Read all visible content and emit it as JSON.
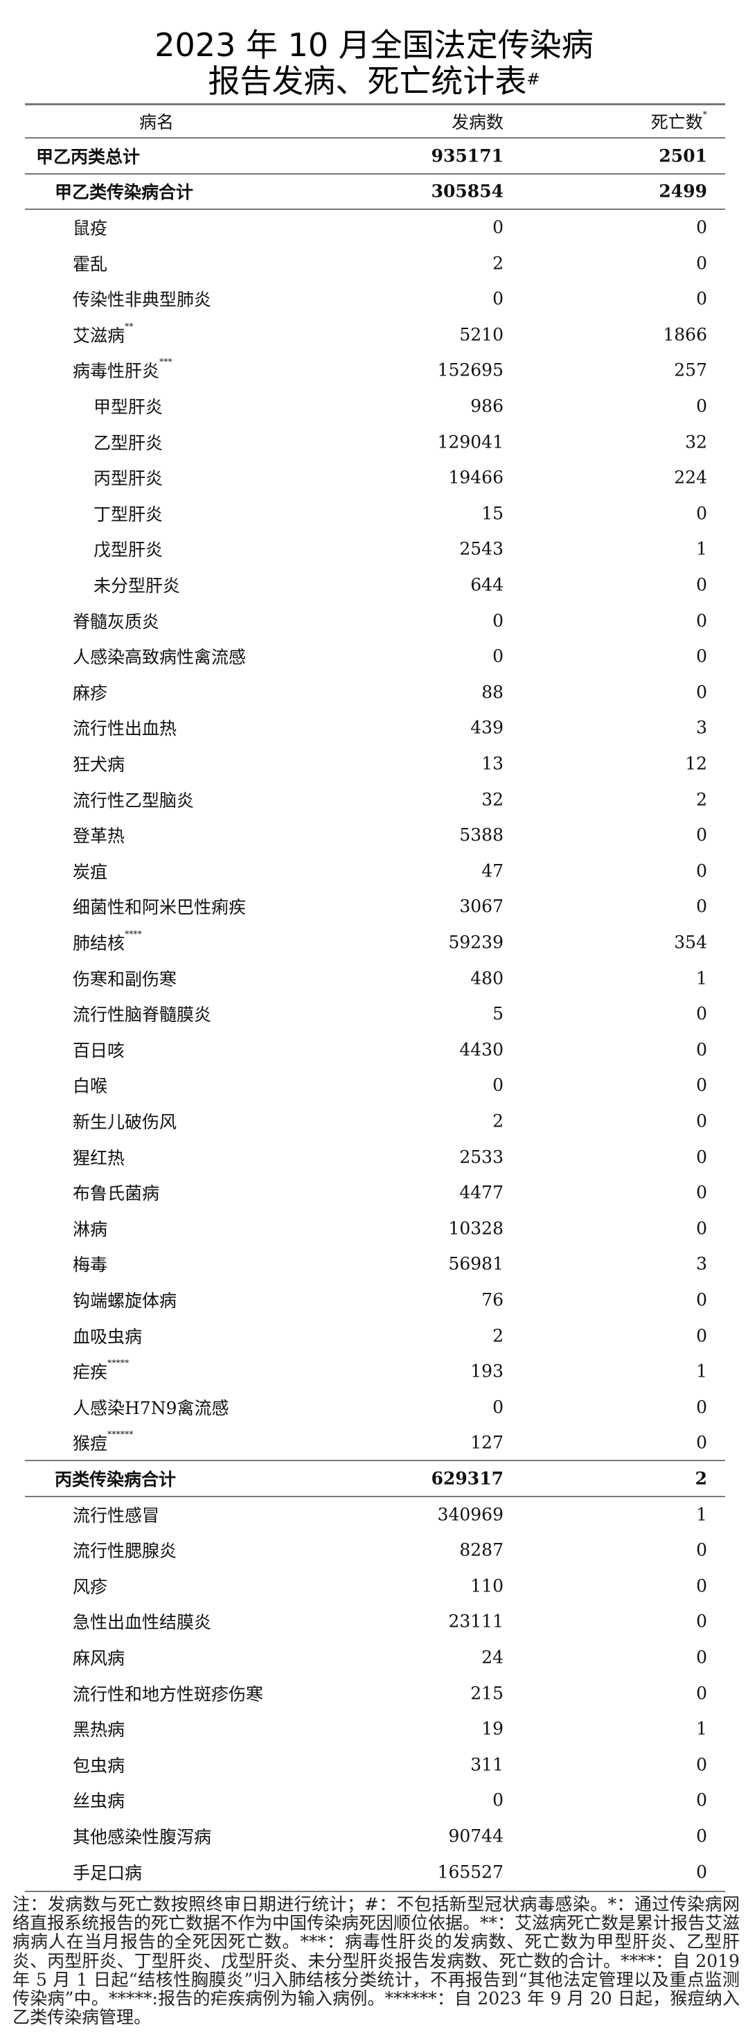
{
  "title": {
    "line1": "2023 年 10 月全国法定传染病",
    "line2": "报告发病、死亡统计表",
    "line2_mark": "#"
  },
  "header": {
    "name": "病名",
    "incidence": "发病数",
    "deaths": "死亡数",
    "deaths_mark": "*"
  },
  "rows": [
    {
      "name": "甲乙丙类总计",
      "incidence": "935171",
      "deaths": "2501",
      "level": 0,
      "bold": true
    },
    {
      "name": "甲乙类传染病合计",
      "incidence": "305854",
      "deaths": "2499",
      "level": 1,
      "bold": true
    },
    {
      "name": "鼠疫",
      "incidence": "0",
      "deaths": "0",
      "level": 2
    },
    {
      "name": "霍乱",
      "incidence": "2",
      "deaths": "0",
      "level": 2
    },
    {
      "name": "传染性非典型肺炎",
      "incidence": "0",
      "deaths": "0",
      "level": 2
    },
    {
      "name": "艾滋病",
      "mark": "**",
      "incidence": "5210",
      "deaths": "1866",
      "level": 2
    },
    {
      "name": "病毒性肝炎",
      "mark": "***",
      "incidence": "152695",
      "deaths": "257",
      "level": 2
    },
    {
      "name": "甲型肝炎",
      "incidence": "986",
      "deaths": "0",
      "level": 3
    },
    {
      "name": "乙型肝炎",
      "incidence": "129041",
      "deaths": "32",
      "level": 3
    },
    {
      "name": "丙型肝炎",
      "incidence": "19466",
      "deaths": "224",
      "level": 3
    },
    {
      "name": "丁型肝炎",
      "incidence": "15",
      "deaths": "0",
      "level": 3
    },
    {
      "name": "戊型肝炎",
      "incidence": "2543",
      "deaths": "1",
      "level": 3
    },
    {
      "name": "未分型肝炎",
      "incidence": "644",
      "deaths": "0",
      "level": 3
    },
    {
      "name": "脊髓灰质炎",
      "incidence": "0",
      "deaths": "0",
      "level": 2
    },
    {
      "name": "人感染高致病性禽流感",
      "incidence": "0",
      "deaths": "0",
      "level": 2
    },
    {
      "name": "麻疹",
      "incidence": "88",
      "deaths": "0",
      "level": 2
    },
    {
      "name": "流行性出血热",
      "incidence": "439",
      "deaths": "3",
      "level": 2
    },
    {
      "name": "狂犬病",
      "incidence": "13",
      "deaths": "12",
      "level": 2
    },
    {
      "name": "流行性乙型脑炎",
      "incidence": "32",
      "deaths": "2",
      "level": 2
    },
    {
      "name": "登革热",
      "incidence": "5388",
      "deaths": "0",
      "level": 2
    },
    {
      "name": "炭疽",
      "incidence": "47",
      "deaths": "0",
      "level": 2
    },
    {
      "name": "细菌性和阿米巴性痢疾",
      "incidence": "3067",
      "deaths": "0",
      "level": 2
    },
    {
      "name": "肺结核",
      "mark": "****",
      "incidence": "59239",
      "deaths": "354",
      "level": 2
    },
    {
      "name": "伤寒和副伤寒",
      "incidence": "480",
      "deaths": "1",
      "level": 2
    },
    {
      "name": "流行性脑脊髓膜炎",
      "incidence": "5",
      "deaths": "0",
      "level": 2
    },
    {
      "name": "百日咳",
      "incidence": "4430",
      "deaths": "0",
      "level": 2
    },
    {
      "name": "白喉",
      "incidence": "0",
      "deaths": "0",
      "level": 2
    },
    {
      "name": "新生儿破伤风",
      "incidence": "2",
      "deaths": "0",
      "level": 2
    },
    {
      "name": "猩红热",
      "incidence": "2533",
      "deaths": "0",
      "level": 2
    },
    {
      "name": "布鲁氏菌病",
      "incidence": "4477",
      "deaths": "0",
      "level": 2
    },
    {
      "name": "淋病",
      "incidence": "10328",
      "deaths": "0",
      "level": 2
    },
    {
      "name": "梅毒",
      "incidence": "56981",
      "deaths": "3",
      "level": 2
    },
    {
      "name": "钩端螺旋体病",
      "incidence": "76",
      "deaths": "0",
      "level": 2
    },
    {
      "name": "血吸虫病",
      "incidence": "2",
      "deaths": "0",
      "level": 2
    },
    {
      "name": "疟疾",
      "mark": "*****",
      "incidence": "193",
      "deaths": "1",
      "level": 2
    },
    {
      "name": "人感染H7N9禽流感",
      "incidence": "0",
      "deaths": "0",
      "level": 2
    },
    {
      "name": "猴痘",
      "mark": "******",
      "incidence": "127",
      "deaths": "0",
      "level": 2
    },
    {
      "name": "丙类传染病合计",
      "incidence": "629317",
      "deaths": "2",
      "level": 1,
      "bold": true
    },
    {
      "name": "流行性感冒",
      "incidence": "340969",
      "deaths": "1",
      "level": 2
    },
    {
      "name": "流行性腮腺炎",
      "incidence": "8287",
      "deaths": "0",
      "level": 2
    },
    {
      "name": "风疹",
      "incidence": "110",
      "deaths": "0",
      "level": 2
    },
    {
      "name": "急性出血性结膜炎",
      "incidence": "23111",
      "deaths": "0",
      "level": 2
    },
    {
      "name": "麻风病",
      "incidence": "24",
      "deaths": "0",
      "level": 2
    },
    {
      "name": "流行性和地方性斑疹伤寒",
      "incidence": "215",
      "deaths": "0",
      "level": 2
    },
    {
      "name": "黑热病",
      "incidence": "19",
      "deaths": "1",
      "level": 2
    },
    {
      "name": "包虫病",
      "incidence": "311",
      "deaths": "0",
      "level": 2
    },
    {
      "name": "丝虫病",
      "incidence": "0",
      "deaths": "0",
      "level": 2
    },
    {
      "name": "其他感染性腹泻病",
      "incidence": "90744",
      "deaths": "0",
      "level": 2
    },
    {
      "name": "手足口病",
      "incidence": "165527",
      "deaths": "0",
      "level": 2
    }
  ],
  "notes": "注：发病数与死亡数按照终审日期进行统计；#：不包括新型冠状病毒感染。*：通过传染病网络直报系统报告的死亡数据不作为中国传染病死因顺位依据。**：艾滋病死亡数是累计报告艾滋病病人在当月报告的全死因死亡数。***：病毒性肝炎的发病数、死亡数为甲型肝炎、乙型肝炎、丙型肝炎、丁型肝炎、戊型肝炎、未分型肝炎报告发病数、死亡数的合计。****：自 2019 年 5 月 1 日起“结核性胸膜炎”归入肺结核分类统计，不再报告到“其他法定管理以及重点监测传染病”中。*****:报告的疟疾病例为输入病例。******：自 2023 年 9 月 20 日起，猴痘纳入乙类传染病管理。"
}
